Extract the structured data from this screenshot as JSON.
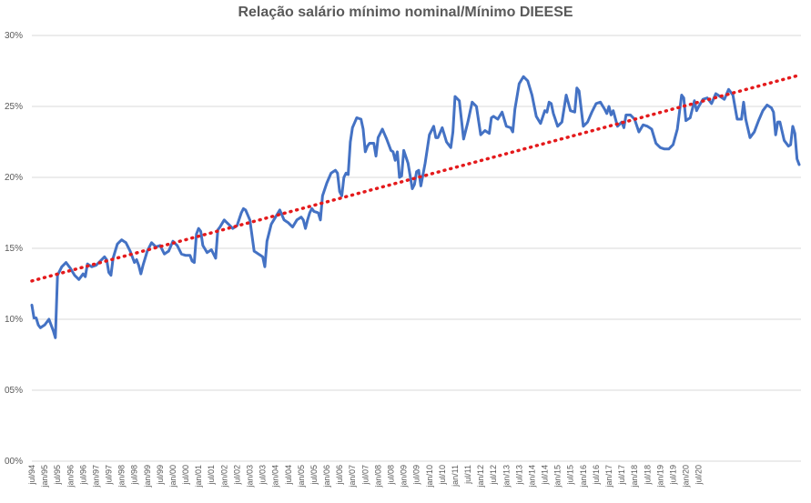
{
  "chart_data": {
    "type": "line",
    "title": "Relação salário mínimo nominal/Mínimo DIEESE",
    "xlabel": "",
    "ylabel": "",
    "ylim": [
      0,
      0.3
    ],
    "y_tick_labels": [
      "00%",
      "05%",
      "10%",
      "15%",
      "20%",
      "25%",
      "30%"
    ],
    "x_tick_labels": [
      "jul/94",
      "jan/95",
      "jul/95",
      "jan/96",
      "jul/96",
      "jan/97",
      "jul/97",
      "jan/98",
      "jul/98",
      "jan/99",
      "jul/99",
      "jan/00",
      "jul/00",
      "jan/01",
      "jul/01",
      "jan/02",
      "jul/02",
      "jan/03",
      "jul/03",
      "jan/04",
      "jul/04",
      "jan/05",
      "jul/05",
      "jan/06",
      "jul/06",
      "jan/07",
      "jul/07",
      "jan/08",
      "jul/08",
      "jan/09",
      "jul/09",
      "jan/10",
      "jul/10",
      "jan/11",
      "jul/11",
      "jan/12",
      "jul/12",
      "jan/13",
      "jul/13",
      "jan/14",
      "jul/14",
      "jan/15",
      "jul/15",
      "jan/16",
      "jul/16",
      "jan/17",
      "jul/17",
      "jan/18",
      "jul/18",
      "jan/19",
      "jul/19",
      "jan/20",
      "jul/20"
    ],
    "grid": true,
    "legend": "none",
    "series": [
      {
        "type": "line",
        "color": "#4472C4",
        "anchors": [
          [
            0,
            0.11
          ],
          [
            1,
            0.101
          ],
          [
            2,
            0.101
          ],
          [
            3,
            0.096
          ],
          [
            4,
            0.094
          ],
          [
            5,
            0.095
          ],
          [
            6,
            0.096
          ],
          [
            8,
            0.1
          ],
          [
            10,
            0.092
          ],
          [
            11,
            0.087
          ],
          [
            12,
            0.131
          ],
          [
            14,
            0.137
          ],
          [
            16,
            0.14
          ],
          [
            18,
            0.136
          ],
          [
            20,
            0.131
          ],
          [
            22,
            0.128
          ],
          [
            24,
            0.132
          ],
          [
            25,
            0.13
          ],
          [
            26,
            0.139
          ],
          [
            28,
            0.137
          ],
          [
            30,
            0.138
          ],
          [
            32,
            0.141
          ],
          [
            34,
            0.144
          ],
          [
            35,
            0.142
          ],
          [
            36,
            0.133
          ],
          [
            37,
            0.131
          ],
          [
            38,
            0.143
          ],
          [
            40,
            0.153
          ],
          [
            42,
            0.156
          ],
          [
            44,
            0.154
          ],
          [
            46,
            0.148
          ],
          [
            48,
            0.14
          ],
          [
            49,
            0.142
          ],
          [
            50,
            0.138
          ],
          [
            51,
            0.132
          ],
          [
            52,
            0.138
          ],
          [
            54,
            0.148
          ],
          [
            56,
            0.154
          ],
          [
            58,
            0.151
          ],
          [
            60,
            0.152
          ],
          [
            62,
            0.146
          ],
          [
            64,
            0.148
          ],
          [
            66,
            0.155
          ],
          [
            68,
            0.152
          ],
          [
            70,
            0.146
          ],
          [
            72,
            0.145
          ],
          [
            74,
            0.145
          ],
          [
            75,
            0.141
          ],
          [
            76,
            0.14
          ],
          [
            77,
            0.16
          ],
          [
            78,
            0.164
          ],
          [
            79,
            0.162
          ],
          [
            80,
            0.152
          ],
          [
            82,
            0.147
          ],
          [
            84,
            0.149
          ],
          [
            85,
            0.146
          ],
          [
            86,
            0.143
          ],
          [
            87,
            0.163
          ],
          [
            88,
            0.165
          ],
          [
            90,
            0.17
          ],
          [
            92,
            0.167
          ],
          [
            94,
            0.164
          ],
          [
            96,
            0.166
          ],
          [
            98,
            0.175
          ],
          [
            99,
            0.178
          ],
          [
            100,
            0.177
          ],
          [
            102,
            0.17
          ],
          [
            104,
            0.148
          ],
          [
            106,
            0.146
          ],
          [
            108,
            0.144
          ],
          [
            109,
            0.137
          ],
          [
            110,
            0.155
          ],
          [
            112,
            0.167
          ],
          [
            114,
            0.172
          ],
          [
            116,
            0.177
          ],
          [
            118,
            0.17
          ],
          [
            120,
            0.168
          ],
          [
            122,
            0.165
          ],
          [
            124,
            0.17
          ],
          [
            126,
            0.172
          ],
          [
            127,
            0.17
          ],
          [
            128,
            0.164
          ],
          [
            129,
            0.17
          ],
          [
            130,
            0.175
          ],
          [
            131,
            0.178
          ],
          [
            132,
            0.176
          ],
          [
            134,
            0.175
          ],
          [
            135,
            0.17
          ],
          [
            136,
            0.187
          ],
          [
            138,
            0.196
          ],
          [
            140,
            0.203
          ],
          [
            142,
            0.205
          ],
          [
            143,
            0.203
          ],
          [
            144,
            0.19
          ],
          [
            145,
            0.187
          ],
          [
            146,
            0.2
          ],
          [
            147,
            0.203
          ],
          [
            148,
            0.202
          ],
          [
            149,
            0.225
          ],
          [
            150,
            0.235
          ],
          [
            152,
            0.242
          ],
          [
            154,
            0.241
          ],
          [
            155,
            0.234
          ],
          [
            156,
            0.218
          ],
          [
            157,
            0.222
          ],
          [
            158,
            0.224
          ],
          [
            160,
            0.224
          ],
          [
            161,
            0.215
          ],
          [
            162,
            0.228
          ],
          [
            164,
            0.234
          ],
          [
            166,
            0.227
          ],
          [
            168,
            0.219
          ],
          [
            169,
            0.218
          ],
          [
            170,
            0.212
          ],
          [
            171,
            0.218
          ],
          [
            172,
            0.2
          ],
          [
            173,
            0.201
          ],
          [
            174,
            0.219
          ],
          [
            176,
            0.21
          ],
          [
            178,
            0.192
          ],
          [
            179,
            0.195
          ],
          [
            180,
            0.204
          ],
          [
            181,
            0.205
          ],
          [
            182,
            0.194
          ],
          [
            184,
            0.21
          ],
          [
            186,
            0.23
          ],
          [
            188,
            0.236
          ],
          [
            189,
            0.228
          ],
          [
            190,
            0.228
          ],
          [
            192,
            0.235
          ],
          [
            194,
            0.225
          ],
          [
            196,
            0.221
          ],
          [
            197,
            0.232
          ],
          [
            198,
            0.257
          ],
          [
            200,
            0.254
          ],
          [
            202,
            0.227
          ],
          [
            204,
            0.239
          ],
          [
            206,
            0.253
          ],
          [
            208,
            0.25
          ],
          [
            210,
            0.23
          ],
          [
            212,
            0.233
          ],
          [
            214,
            0.231
          ],
          [
            215,
            0.242
          ],
          [
            216,
            0.243
          ],
          [
            218,
            0.241
          ],
          [
            220,
            0.246
          ],
          [
            222,
            0.236
          ],
          [
            224,
            0.235
          ],
          [
            225,
            0.232
          ],
          [
            226,
            0.248
          ],
          [
            228,
            0.266
          ],
          [
            230,
            0.271
          ],
          [
            232,
            0.268
          ],
          [
            234,
            0.258
          ],
          [
            236,
            0.243
          ],
          [
            238,
            0.238
          ],
          [
            240,
            0.247
          ],
          [
            241,
            0.246
          ],
          [
            242,
            0.253
          ],
          [
            243,
            0.252
          ],
          [
            244,
            0.245
          ],
          [
            246,
            0.236
          ],
          [
            248,
            0.239
          ],
          [
            250,
            0.258
          ],
          [
            252,
            0.247
          ],
          [
            254,
            0.246
          ],
          [
            255,
            0.263
          ],
          [
            256,
            0.261
          ],
          [
            258,
            0.236
          ],
          [
            260,
            0.239
          ],
          [
            262,
            0.246
          ],
          [
            264,
            0.252
          ],
          [
            266,
            0.253
          ],
          [
            268,
            0.248
          ],
          [
            269,
            0.245
          ],
          [
            270,
            0.25
          ],
          [
            271,
            0.244
          ],
          [
            272,
            0.247
          ],
          [
            274,
            0.236
          ],
          [
            276,
            0.239
          ],
          [
            277,
            0.235
          ],
          [
            278,
            0.244
          ],
          [
            280,
            0.244
          ],
          [
            282,
            0.241
          ],
          [
            284,
            0.232
          ],
          [
            286,
            0.237
          ],
          [
            288,
            0.236
          ],
          [
            290,
            0.234
          ],
          [
            292,
            0.224
          ],
          [
            294,
            0.221
          ],
          [
            296,
            0.22
          ],
          [
            298,
            0.22
          ],
          [
            300,
            0.223
          ],
          [
            302,
            0.234
          ],
          [
            304,
            0.258
          ],
          [
            305,
            0.256
          ],
          [
            306,
            0.24
          ],
          [
            308,
            0.242
          ],
          [
            310,
            0.254
          ],
          [
            311,
            0.247
          ],
          [
            312,
            0.25
          ],
          [
            314,
            0.255
          ],
          [
            316,
            0.256
          ],
          [
            318,
            0.252
          ],
          [
            320,
            0.259
          ],
          [
            322,
            0.257
          ],
          [
            324,
            0.255
          ],
          [
            326,
            0.262
          ],
          [
            328,
            0.258
          ],
          [
            330,
            0.241
          ],
          [
            332,
            0.241
          ],
          [
            333,
            0.253
          ],
          [
            334,
            0.241
          ],
          [
            336,
            0.228
          ],
          [
            338,
            0.232
          ],
          [
            340,
            0.24
          ],
          [
            342,
            0.247
          ],
          [
            344,
            0.251
          ],
          [
            346,
            0.249
          ],
          [
            347,
            0.246
          ],
          [
            348,
            0.23
          ],
          [
            349,
            0.239
          ],
          [
            350,
            0.239
          ],
          [
            352,
            0.226
          ],
          [
            354,
            0.222
          ],
          [
            355,
            0.223
          ],
          [
            356,
            0.236
          ],
          [
            357,
            0.231
          ],
          [
            358,
            0.213
          ],
          [
            359,
            0.209
          ]
        ]
      },
      {
        "type": "trend",
        "color": "#E41A1C",
        "style": "dotted",
        "start": [
          0,
          0.127
        ],
        "end": [
          359,
          0.272
        ]
      }
    ]
  }
}
